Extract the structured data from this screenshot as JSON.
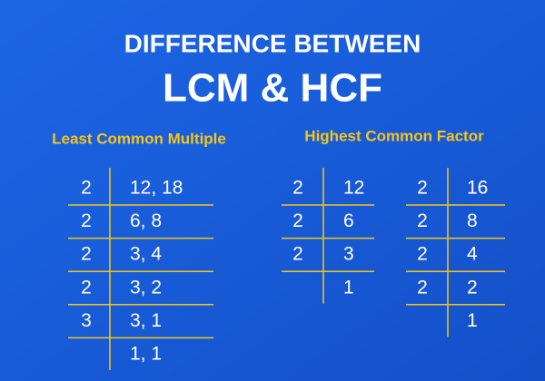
{
  "header": {
    "title": "DIFFERENCE BETWEEN",
    "subtitle": "LCM & HCF"
  },
  "lcm": {
    "title": "Least Common Multiple",
    "rows": [
      {
        "divisor": 2,
        "value": "12, 18"
      },
      {
        "divisor": 2,
        "value": "6, 8"
      },
      {
        "divisor": 2,
        "value": "3, 4"
      },
      {
        "divisor": 2,
        "value": "3, 2"
      },
      {
        "divisor": 3,
        "value": "3, 1"
      },
      {
        "value": "1, 1"
      }
    ]
  },
  "hcf": {
    "title": "Highest Common Factor",
    "tables": [
      {
        "rows": [
          {
            "divisor": 2,
            "value": 12
          },
          {
            "divisor": 2,
            "value": 6
          },
          {
            "divisor": 2,
            "value": 3
          },
          {
            "value": 1
          }
        ]
      },
      {
        "rows": [
          {
            "divisor": 2,
            "value": 16
          },
          {
            "divisor": 2,
            "value": 8
          },
          {
            "divisor": 2,
            "value": 4
          },
          {
            "divisor": 2,
            "value": 2
          },
          {
            "value": 1
          }
        ]
      }
    ]
  }
}
